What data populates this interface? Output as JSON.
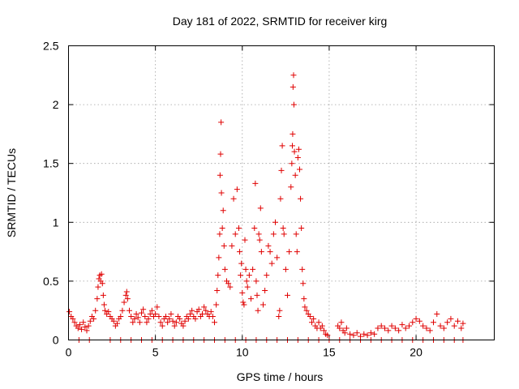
{
  "chart_data": {
    "type": "scatter",
    "title": "Day 181 of 2022, SRMTID for receiver kirg",
    "xlabel": "GPS time / hours",
    "ylabel": "SRMTID / TECUs",
    "xlim": [
      0,
      24.5
    ],
    "ylim": [
      0,
      2.5
    ],
    "xticks": [
      0,
      5,
      10,
      15,
      20
    ],
    "xtick_labels": [
      "0",
      "5",
      "10",
      "15",
      "20"
    ],
    "yticks": [
      0,
      0.5,
      1,
      1.5,
      2,
      2.5
    ],
    "ytick_labels": [
      "0",
      "0.5",
      "1",
      "1.5",
      "2",
      "2.5"
    ],
    "grid": true,
    "marker": "plus",
    "color": "#e00000",
    "series": [
      {
        "name": "SRMTID",
        "points": [
          [
            0.05,
            0.24
          ],
          [
            0.15,
            0.2
          ],
          [
            0.25,
            0.18
          ],
          [
            0.35,
            0.15
          ],
          [
            0.45,
            0.12
          ],
          [
            0.55,
            0.1
          ],
          [
            0.65,
            0.13
          ],
          [
            0.75,
            0.09
          ],
          [
            0.85,
            0.15
          ],
          [
            0.95,
            0.11
          ],
          [
            1.05,
            0.08
          ],
          [
            1.15,
            0.12
          ],
          [
            1.25,
            0.16
          ],
          [
            1.35,
            0.2
          ],
          [
            1.45,
            0.18
          ],
          [
            1.55,
            0.25
          ],
          [
            1.65,
            0.35
          ],
          [
            1.7,
            0.45
          ],
          [
            1.75,
            0.52
          ],
          [
            1.8,
            0.55
          ],
          [
            1.85,
            0.5
          ],
          [
            1.9,
            0.56
          ],
          [
            1.95,
            0.48
          ],
          [
            2.0,
            0.38
          ],
          [
            2.05,
            0.3
          ],
          [
            2.1,
            0.25
          ],
          [
            2.2,
            0.22
          ],
          [
            2.3,
            0.24
          ],
          [
            2.4,
            0.2
          ],
          [
            2.5,
            0.18
          ],
          [
            2.6,
            0.16
          ],
          [
            2.7,
            0.12
          ],
          [
            2.8,
            0.14
          ],
          [
            2.9,
            0.18
          ],
          [
            3.0,
            0.2
          ],
          [
            3.1,
            0.25
          ],
          [
            3.2,
            0.32
          ],
          [
            3.3,
            0.38
          ],
          [
            3.35,
            0.41
          ],
          [
            3.4,
            0.35
          ],
          [
            3.5,
            0.25
          ],
          [
            3.6,
            0.2
          ],
          [
            3.7,
            0.15
          ],
          [
            3.8,
            0.18
          ],
          [
            3.9,
            0.22
          ],
          [
            4.0,
            0.19
          ],
          [
            4.1,
            0.15
          ],
          [
            4.2,
            0.23
          ],
          [
            4.3,
            0.26
          ],
          [
            4.4,
            0.2
          ],
          [
            4.5,
            0.15
          ],
          [
            4.6,
            0.18
          ],
          [
            4.7,
            0.22
          ],
          [
            4.8,
            0.25
          ],
          [
            4.9,
            0.2
          ],
          [
            5.0,
            0.22
          ],
          [
            5.1,
            0.28
          ],
          [
            5.2,
            0.2
          ],
          [
            5.3,
            0.15
          ],
          [
            5.4,
            0.12
          ],
          [
            5.5,
            0.18
          ],
          [
            5.6,
            0.2
          ],
          [
            5.7,
            0.15
          ],
          [
            5.8,
            0.18
          ],
          [
            5.9,
            0.22
          ],
          [
            6.0,
            0.16
          ],
          [
            6.1,
            0.12
          ],
          [
            6.2,
            0.15
          ],
          [
            6.3,
            0.2
          ],
          [
            6.4,
            0.18
          ],
          [
            6.5,
            0.14
          ],
          [
            6.6,
            0.12
          ],
          [
            6.7,
            0.16
          ],
          [
            6.8,
            0.2
          ],
          [
            6.9,
            0.18
          ],
          [
            7.0,
            0.22
          ],
          [
            7.1,
            0.25
          ],
          [
            7.2,
            0.2
          ],
          [
            7.3,
            0.18
          ],
          [
            7.4,
            0.24
          ],
          [
            7.5,
            0.26
          ],
          [
            7.6,
            0.2
          ],
          [
            7.7,
            0.22
          ],
          [
            7.8,
            0.28
          ],
          [
            7.9,
            0.25
          ],
          [
            8.0,
            0.22
          ],
          [
            8.1,
            0.2
          ],
          [
            8.2,
            0.24
          ],
          [
            8.3,
            0.2
          ],
          [
            8.4,
            0.15
          ],
          [
            8.5,
            0.3
          ],
          [
            8.55,
            0.42
          ],
          [
            8.6,
            0.55
          ],
          [
            8.65,
            0.7
          ],
          [
            8.7,
            0.9
          ],
          [
            8.72,
            1.4
          ],
          [
            8.75,
            1.58
          ],
          [
            8.78,
            1.85
          ],
          [
            8.8,
            1.25
          ],
          [
            8.85,
            0.95
          ],
          [
            8.9,
            1.1
          ],
          [
            8.95,
            0.8
          ],
          [
            9.0,
            0.6
          ],
          [
            9.1,
            0.5
          ],
          [
            9.2,
            0.48
          ],
          [
            9.3,
            0.45
          ],
          [
            9.4,
            0.8
          ],
          [
            9.5,
            1.2
          ],
          [
            9.6,
            0.9
          ],
          [
            9.7,
            1.28
          ],
          [
            9.8,
            0.95
          ],
          [
            9.85,
            0.75
          ],
          [
            9.9,
            0.55
          ],
          [
            9.95,
            0.65
          ],
          [
            10.0,
            0.4
          ],
          [
            10.05,
            0.32
          ],
          [
            10.1,
            0.3
          ],
          [
            10.15,
            0.85
          ],
          [
            10.2,
            0.6
          ],
          [
            10.25,
            0.5
          ],
          [
            10.3,
            0.45
          ],
          [
            10.4,
            0.55
          ],
          [
            10.5,
            0.35
          ],
          [
            10.6,
            0.6
          ],
          [
            10.7,
            0.95
          ],
          [
            10.75,
            1.33
          ],
          [
            10.8,
            0.5
          ],
          [
            10.85,
            0.38
          ],
          [
            10.9,
            0.25
          ],
          [
            10.95,
            0.9
          ],
          [
            11.0,
            0.85
          ],
          [
            11.05,
            1.12
          ],
          [
            11.1,
            0.75
          ],
          [
            11.2,
            0.3
          ],
          [
            11.3,
            0.42
          ],
          [
            11.4,
            0.55
          ],
          [
            11.5,
            0.8
          ],
          [
            11.6,
            0.75
          ],
          [
            11.7,
            0.65
          ],
          [
            11.8,
            0.9
          ],
          [
            11.9,
            1.0
          ],
          [
            12.0,
            0.7
          ],
          [
            12.1,
            0.2
          ],
          [
            12.15,
            0.25
          ],
          [
            12.2,
            1.2
          ],
          [
            12.25,
            1.44
          ],
          [
            12.3,
            1.65
          ],
          [
            12.35,
            0.95
          ],
          [
            12.4,
            0.9
          ],
          [
            12.5,
            0.6
          ],
          [
            12.6,
            0.38
          ],
          [
            12.7,
            0.75
          ],
          [
            12.8,
            1.3
          ],
          [
            12.85,
            1.5
          ],
          [
            12.88,
            1.65
          ],
          [
            12.9,
            1.75
          ],
          [
            12.92,
            2.15
          ],
          [
            12.95,
            2.25
          ],
          [
            12.97,
            2.0
          ],
          [
            13.0,
            1.6
          ],
          [
            13.05,
            1.4
          ],
          [
            13.1,
            0.9
          ],
          [
            13.15,
            0.75
          ],
          [
            13.2,
            1.55
          ],
          [
            13.25,
            1.62
          ],
          [
            13.3,
            1.45
          ],
          [
            13.35,
            1.2
          ],
          [
            13.4,
            0.95
          ],
          [
            13.45,
            0.6
          ],
          [
            13.5,
            0.48
          ],
          [
            13.55,
            0.35
          ],
          [
            13.6,
            0.28
          ],
          [
            13.7,
            0.25
          ],
          [
            13.8,
            0.22
          ],
          [
            13.9,
            0.2
          ],
          [
            14.0,
            0.15
          ],
          [
            14.1,
            0.18
          ],
          [
            14.2,
            0.12
          ],
          [
            14.3,
            0.1
          ],
          [
            14.4,
            0.15
          ],
          [
            14.5,
            0.1
          ],
          [
            14.6,
            0.12
          ],
          [
            14.7,
            0.08
          ],
          [
            14.8,
            0.05
          ],
          [
            14.9,
            0.04
          ],
          [
            15.5,
            0.12
          ],
          [
            15.6,
            0.1
          ],
          [
            15.7,
            0.15
          ],
          [
            15.8,
            0.08
          ],
          [
            15.9,
            0.06
          ],
          [
            16.0,
            0.1
          ],
          [
            16.2,
            0.05
          ],
          [
            16.4,
            0.04
          ],
          [
            16.6,
            0.06
          ],
          [
            16.8,
            0.03
          ],
          [
            17.0,
            0.05
          ],
          [
            17.2,
            0.04
          ],
          [
            17.4,
            0.06
          ],
          [
            17.6,
            0.05
          ],
          [
            17.8,
            0.1
          ],
          [
            18.0,
            0.12
          ],
          [
            18.2,
            0.1
          ],
          [
            18.4,
            0.08
          ],
          [
            18.6,
            0.12
          ],
          [
            18.8,
            0.1
          ],
          [
            19.0,
            0.08
          ],
          [
            19.2,
            0.13
          ],
          [
            19.4,
            0.1
          ],
          [
            19.6,
            0.12
          ],
          [
            19.8,
            0.15
          ],
          [
            20.0,
            0.18
          ],
          [
            20.2,
            0.16
          ],
          [
            20.4,
            0.12
          ],
          [
            20.6,
            0.1
          ],
          [
            20.8,
            0.08
          ],
          [
            21.0,
            0.15
          ],
          [
            21.2,
            0.22
          ],
          [
            21.4,
            0.12
          ],
          [
            21.6,
            0.1
          ],
          [
            21.8,
            0.15
          ],
          [
            22.0,
            0.18
          ],
          [
            22.2,
            0.12
          ],
          [
            22.4,
            0.16
          ],
          [
            22.6,
            0.1
          ],
          [
            22.7,
            0.14
          ],
          [
            0.6,
            0.0
          ],
          [
            1.2,
            0.0
          ],
          [
            2.4,
            0.0
          ],
          [
            3.0,
            0.0
          ],
          [
            3.6,
            0.0
          ],
          [
            4.2,
            0.0
          ],
          [
            4.8,
            0.0
          ],
          [
            5.4,
            0.0
          ],
          [
            6.0,
            0.0
          ],
          [
            6.6,
            0.0
          ],
          [
            7.2,
            0.0
          ],
          [
            7.8,
            0.0
          ],
          [
            8.4,
            0.0
          ],
          [
            9.0,
            0.0
          ],
          [
            9.6,
            0.0
          ],
          [
            10.2,
            0.0
          ],
          [
            10.8,
            0.0
          ],
          [
            11.4,
            0.0
          ],
          [
            12.0,
            0.0
          ],
          [
            12.6,
            0.0
          ],
          [
            13.2,
            0.0
          ],
          [
            13.8,
            0.0
          ],
          [
            14.4,
            0.0
          ],
          [
            15.0,
            0.0
          ],
          [
            15.6,
            0.0
          ],
          [
            16.2,
            0.0
          ],
          [
            16.8,
            0.0
          ],
          [
            17.4,
            0.0
          ],
          [
            18.0,
            0.0
          ],
          [
            18.6,
            0.0
          ],
          [
            19.2,
            0.0
          ],
          [
            19.8,
            0.0
          ],
          [
            20.4,
            0.0
          ],
          [
            21.0,
            0.0
          ],
          [
            21.6,
            0.0
          ],
          [
            22.2,
            0.0
          ],
          [
            22.7,
            0.0
          ]
        ]
      }
    ]
  }
}
